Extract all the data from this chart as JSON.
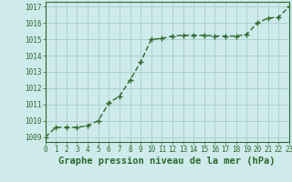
{
  "x": [
    0,
    1,
    2,
    3,
    4,
    5,
    6,
    7,
    8,
    9,
    10,
    11,
    12,
    13,
    14,
    15,
    16,
    17,
    18,
    19,
    20,
    21,
    22,
    23
  ],
  "y": [
    1009.0,
    1009.6,
    1009.6,
    1009.6,
    1009.7,
    1010.0,
    1011.1,
    1011.5,
    1012.5,
    1013.6,
    1015.0,
    1015.05,
    1015.2,
    1015.25,
    1015.25,
    1015.25,
    1015.2,
    1015.2,
    1015.2,
    1015.3,
    1016.0,
    1016.3,
    1016.35,
    1017.0
  ],
  "xlim": [
    0,
    23
  ],
  "ylim": [
    1008.7,
    1017.3
  ],
  "yticks": [
    1009,
    1010,
    1011,
    1012,
    1013,
    1014,
    1015,
    1016,
    1017
  ],
  "xticks": [
    0,
    1,
    2,
    3,
    4,
    5,
    6,
    7,
    8,
    9,
    10,
    11,
    12,
    13,
    14,
    15,
    16,
    17,
    18,
    19,
    20,
    21,
    22,
    23
  ],
  "xlabel": "Graphe pression niveau de la mer (hPa)",
  "line_color": "#2d6a2d",
  "marker": "+",
  "marker_size": 4,
  "line_width": 1.0,
  "bg_color": "#ceeaea",
  "grid_color": "#a8cccc",
  "tick_label_fontsize": 5.5,
  "xlabel_fontsize": 7.5
}
